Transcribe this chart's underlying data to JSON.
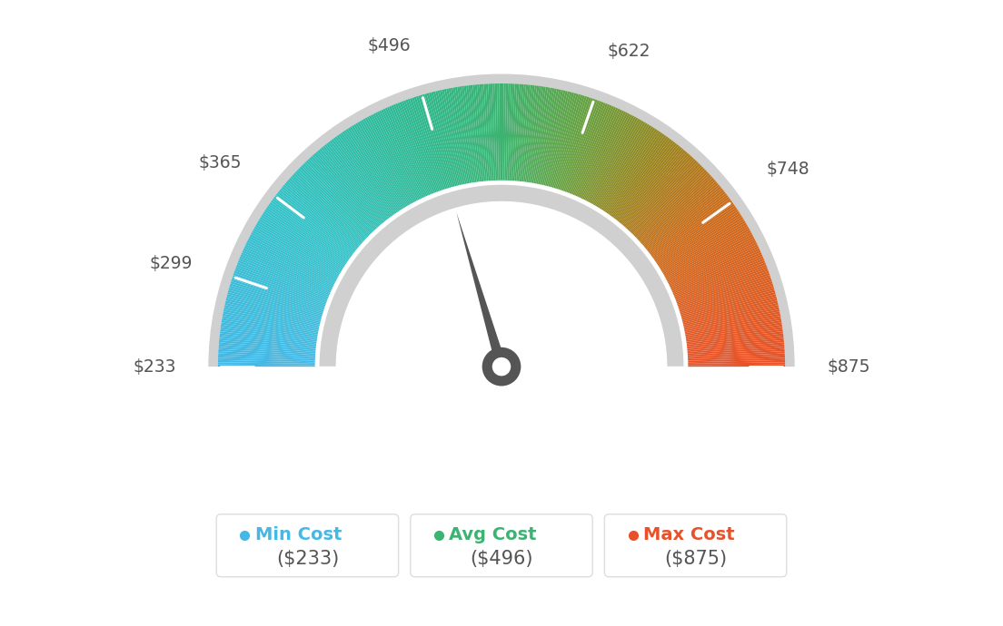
{
  "min_val": 233,
  "max_val": 875,
  "avg_val": 496,
  "label_values": [
    233,
    299,
    365,
    496,
    622,
    748,
    875
  ],
  "min_cost_label": "Min Cost",
  "avg_cost_label": "Avg Cost",
  "max_cost_label": "Max Cost",
  "min_cost_value": "($233)",
  "avg_cost_value": "($496)",
  "max_cost_value": "($875)",
  "min_color": "#45b8e6",
  "avg_color": "#3cb371",
  "max_color": "#e8522a",
  "background_color": "#ffffff",
  "needle_color": "#555555",
  "color_stops": [
    [
      0.0,
      [
        0.27,
        0.72,
        0.9
      ]
    ],
    [
      0.2,
      [
        0.2,
        0.76,
        0.78
      ]
    ],
    [
      0.4,
      [
        0.18,
        0.72,
        0.55
      ]
    ],
    [
      0.5,
      [
        0.24,
        0.7,
        0.44
      ]
    ],
    [
      0.6,
      [
        0.4,
        0.63,
        0.25
      ]
    ],
    [
      0.7,
      [
        0.6,
        0.52,
        0.12
      ]
    ],
    [
      0.8,
      [
        0.8,
        0.42,
        0.1
      ]
    ],
    [
      1.0,
      [
        0.91,
        0.32,
        0.16
      ]
    ]
  ],
  "tick_label_fontsize": 13.5,
  "legend_label_fontsize": 14,
  "legend_value_fontsize": 15
}
